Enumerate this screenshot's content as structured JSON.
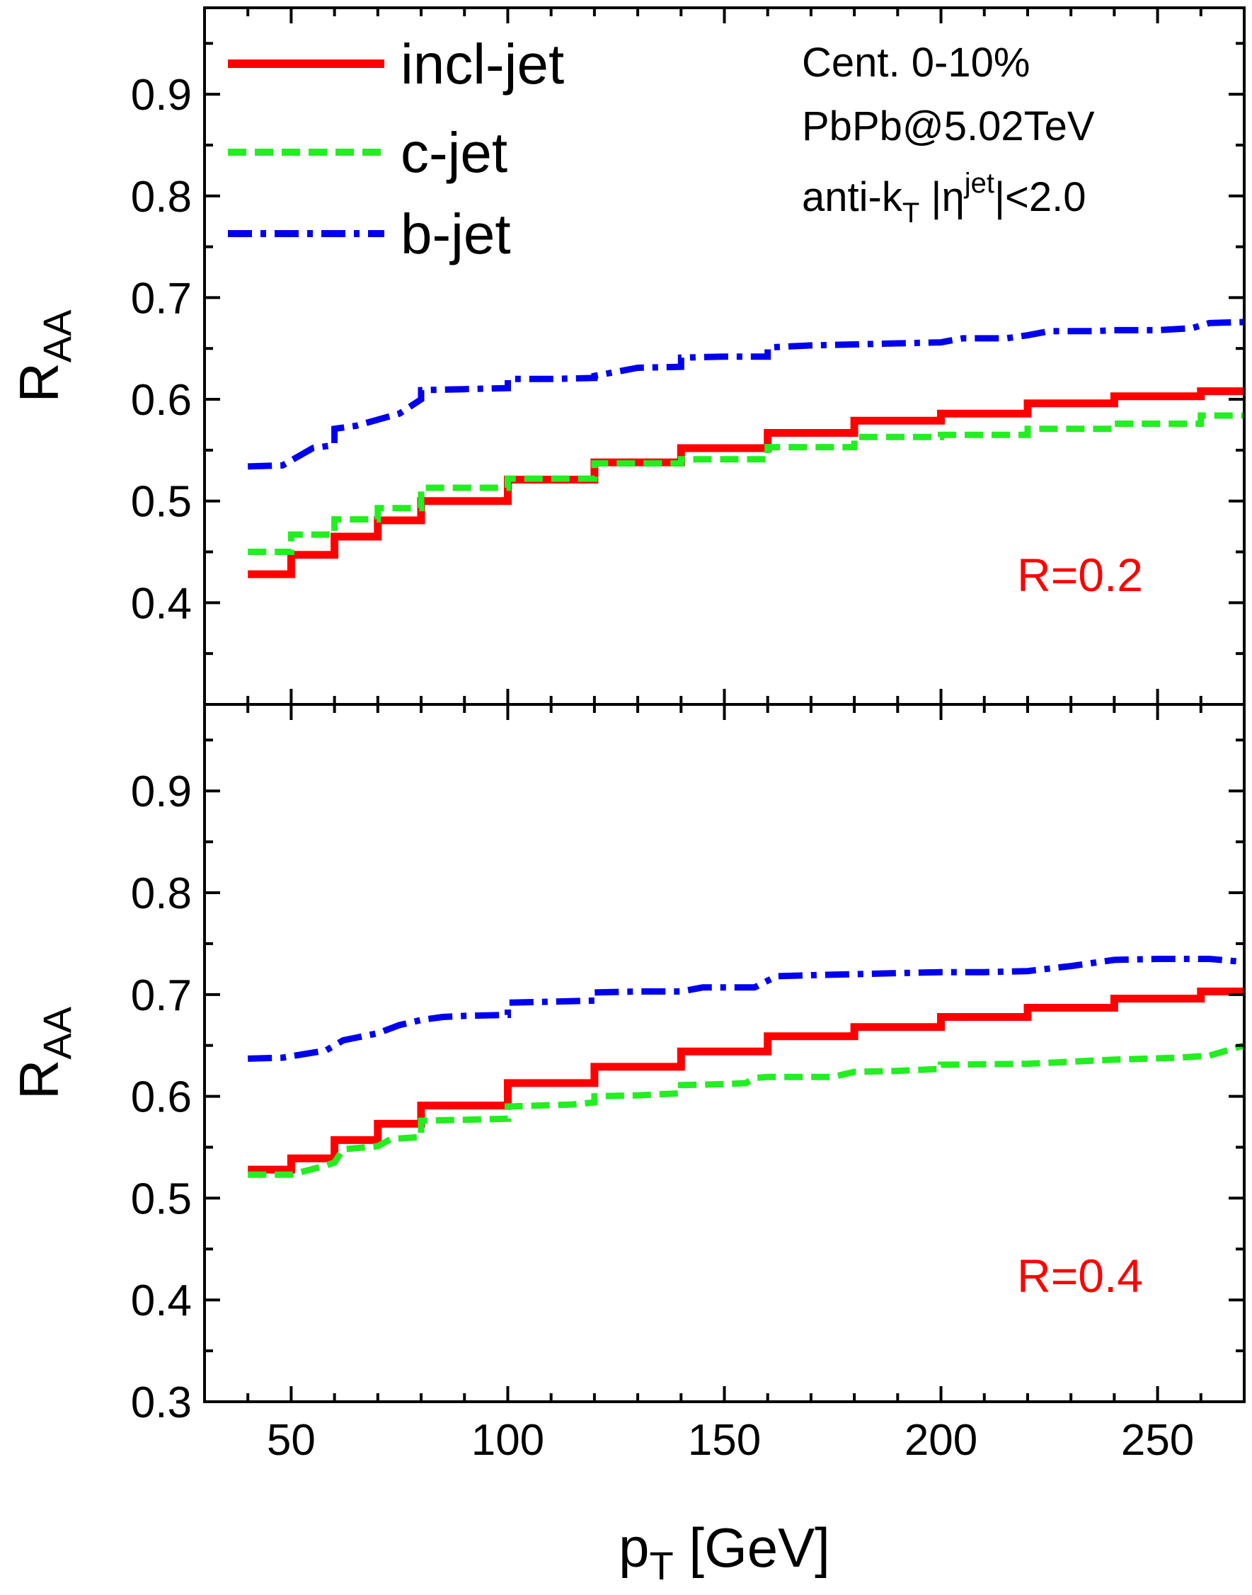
{
  "chart_data": [
    {
      "type": "line",
      "panel": "top",
      "ylabel": "R",
      "ylabel_sub": "AA",
      "xlim": [
        30,
        270
      ],
      "ylim": [
        0.3,
        0.985
      ],
      "yticks": [
        0.4,
        0.5,
        0.6,
        0.7,
        0.8,
        0.9
      ],
      "ytick_labels": [
        "0.4",
        "0.5",
        "0.6",
        "0.7",
        "0.8",
        "0.9"
      ],
      "xticks": [
        50,
        100,
        150,
        200,
        250
      ],
      "xtick_labels": [
        "",
        "",
        "",
        "",
        ""
      ],
      "panel_label": "R=0.2",
      "annotation": {
        "line1": "Cent. 0-10%",
        "line2": "PbPb@5.02TeV",
        "line3_main": "anti-k",
        "line3_sub": "T",
        "line3_mid": " |η",
        "line3_sup": "jet",
        "line3_end": "|<2.0"
      },
      "legend": [
        {
          "label": "incl-jet",
          "color": "#ff0000",
          "style": "solid"
        },
        {
          "label": "c-jet",
          "color": "#22ee22",
          "style": "dashed"
        },
        {
          "label": "b-jet",
          "color": "#0000ee",
          "style": "dashdot"
        }
      ],
      "legend_position": "top-left",
      "series": [
        {
          "name": "incl-jet",
          "color": "#ff0000",
          "style": "solid",
          "step": true,
          "edges": [
            40,
            50,
            60,
            70,
            80,
            100,
            120,
            140,
            160,
            180,
            200,
            220,
            240,
            260,
            270
          ],
          "values": [
            0.428,
            0.447,
            0.465,
            0.481,
            0.5,
            0.521,
            0.538,
            0.552,
            0.567,
            0.579,
            0.586,
            0.596,
            0.603,
            0.608
          ]
        },
        {
          "name": "c-jet",
          "color": "#22ee22",
          "style": "dashed",
          "step": true,
          "edges": [
            40,
            50,
            60,
            70,
            80,
            100,
            120,
            140,
            160,
            180,
            200,
            220,
            240,
            260,
            270
          ],
          "values": [
            0.45,
            0.467,
            0.482,
            0.493,
            0.513,
            0.522,
            0.537,
            0.541,
            0.553,
            0.563,
            0.565,
            0.571,
            0.576,
            0.584
          ]
        },
        {
          "name": "b-jet",
          "color": "#0000ee",
          "style": "dashdot",
          "step": false,
          "x": [
            40,
            48,
            55,
            60,
            60,
            65,
            70,
            75,
            80,
            80,
            90,
            100,
            100,
            110,
            120,
            120,
            130,
            140,
            140,
            150,
            160,
            160,
            170,
            180,
            190,
            200,
            205,
            215,
            220,
            225,
            235,
            240,
            250,
            258,
            262,
            270
          ],
          "y": [
            0.534,
            0.535,
            0.552,
            0.555,
            0.571,
            0.574,
            0.58,
            0.586,
            0.6,
            0.609,
            0.61,
            0.611,
            0.62,
            0.62,
            0.621,
            0.623,
            0.631,
            0.632,
            0.641,
            0.642,
            0.642,
            0.651,
            0.653,
            0.654,
            0.655,
            0.656,
            0.66,
            0.66,
            0.663,
            0.667,
            0.667,
            0.668,
            0.668,
            0.67,
            0.675,
            0.676
          ]
        }
      ]
    },
    {
      "type": "line",
      "panel": "bottom",
      "xlabel": "p",
      "xlabel_sub": "T",
      "xlabel_unit": " [GeV]",
      "ylabel": "R",
      "ylabel_sub": "AA",
      "xlim": [
        30,
        270
      ],
      "ylim": [
        0.3,
        0.985
      ],
      "yticks": [
        0.3,
        0.4,
        0.5,
        0.6,
        0.7,
        0.8,
        0.9
      ],
      "ytick_labels": [
        "0.3",
        "0.4",
        "0.5",
        "0.6",
        "0.7",
        "0.8",
        "0.9"
      ],
      "xticks": [
        50,
        100,
        150,
        200,
        250
      ],
      "xtick_labels": [
        "50",
        "100",
        "150",
        "200",
        "250"
      ],
      "panel_label": "R=0.4",
      "series": [
        {
          "name": "incl-jet",
          "color": "#ff0000",
          "style": "solid",
          "step": true,
          "edges": [
            40,
            50,
            60,
            70,
            80,
            100,
            120,
            140,
            160,
            180,
            200,
            220,
            240,
            260,
            270
          ],
          "values": [
            0.528,
            0.539,
            0.557,
            0.573,
            0.591,
            0.613,
            0.629,
            0.644,
            0.659,
            0.668,
            0.678,
            0.687,
            0.696,
            0.703
          ]
        },
        {
          "name": "c-jet",
          "color": "#22ee22",
          "style": "dashed",
          "step": false,
          "x": [
            40,
            50,
            58,
            60,
            62,
            70,
            73,
            80,
            80,
            90,
            100,
            100,
            115,
            120,
            120,
            130,
            140,
            140,
            150,
            155,
            157,
            160,
            170,
            175,
            180,
            190,
            200,
            200,
            220,
            240,
            255,
            262,
            270
          ],
          "y": [
            0.523,
            0.523,
            0.532,
            0.535,
            0.548,
            0.551,
            0.558,
            0.56,
            0.576,
            0.577,
            0.578,
            0.59,
            0.592,
            0.594,
            0.6,
            0.601,
            0.603,
            0.611,
            0.612,
            0.613,
            0.618,
            0.619,
            0.619,
            0.619,
            0.624,
            0.625,
            0.627,
            0.631,
            0.632,
            0.636,
            0.638,
            0.64,
            0.65
          ]
        },
        {
          "name": "b-jet",
          "color": "#0000ee",
          "style": "dashdot",
          "step": false,
          "x": [
            40,
            48,
            58,
            62,
            70,
            75,
            80,
            85,
            90,
            100,
            100,
            110,
            120,
            120,
            130,
            140,
            145,
            157,
            162,
            170,
            180,
            190,
            200,
            210,
            220,
            230,
            240,
            250,
            262,
            270
          ],
          "y": [
            0.637,
            0.638,
            0.645,
            0.655,
            0.662,
            0.67,
            0.675,
            0.678,
            0.679,
            0.68,
            0.692,
            0.693,
            0.694,
            0.702,
            0.703,
            0.703,
            0.707,
            0.707,
            0.718,
            0.719,
            0.72,
            0.721,
            0.722,
            0.722,
            0.723,
            0.728,
            0.734,
            0.735,
            0.735,
            0.732
          ]
        }
      ]
    }
  ]
}
